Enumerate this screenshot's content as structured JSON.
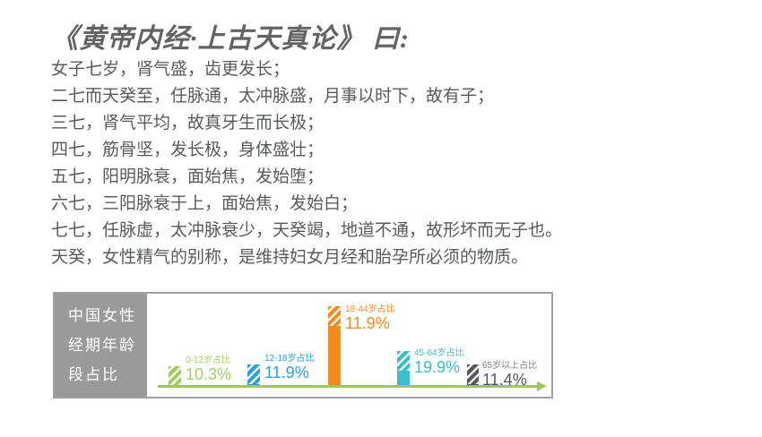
{
  "title": "《黄帝内经·上古天真论》 曰:",
  "verses": [
    "女子七岁，肾气盛，齿更发长；",
    "二七而天癸至，任脉通，太冲脉盛，月事以时下，故有子；",
    "三七，肾气平均，故真牙生而长极；",
    "四七，筋骨坚，发长极，身体盛壮；",
    "五七，阳明脉衰，面始焦，发始堕；",
    "六七，三阳脉衰于上，面始焦，发始白；",
    "七七，任脉虚，太冲脉衰少，天癸竭，地道不通，故形坏而无子也。",
    "天癸，女性精气的别称，是维持妇女月经和胎孕所必须的物质。"
  ],
  "chart": {
    "side_title_lines": [
      "中国女性",
      "经期年龄",
      "段占比"
    ],
    "bars": [
      {
        "label": "0-12岁占比",
        "value": "10.3%",
        "color": "#a2cc61"
      },
      {
        "label": "12-18岁占比",
        "value": "11.9%",
        "color": "#2d9ed9"
      },
      {
        "label": "18-44岁占比",
        "value": "11.9%",
        "color": "#f38b1e"
      },
      {
        "label": "45-64岁占比",
        "value": "19.9%",
        "color": "#3abec7"
      },
      {
        "label": "65岁以上占比",
        "value": "11.4%",
        "color": "#55565a"
      }
    ],
    "axis_color": "#9cc75a",
    "side_panel_color": "#9a9a9a",
    "border_color": "#a0a0a0"
  },
  "chart_data": {
    "type": "bar",
    "title": "中国女性经期年龄段占比",
    "categories": [
      "0-12岁",
      "12-18岁",
      "18-44岁",
      "45-64岁",
      "65岁以上"
    ],
    "values": [
      10.3,
      11.9,
      11.9,
      19.9,
      11.4
    ],
    "unit": "%",
    "xlabel": "",
    "ylabel": "",
    "grid": false,
    "legend_position": "none",
    "note": "infographic bar heights are decorative, not proportional to values; tallest bar is 18-44岁"
  },
  "text_colors": {
    "title": "#636363",
    "body": "#585a5c"
  }
}
